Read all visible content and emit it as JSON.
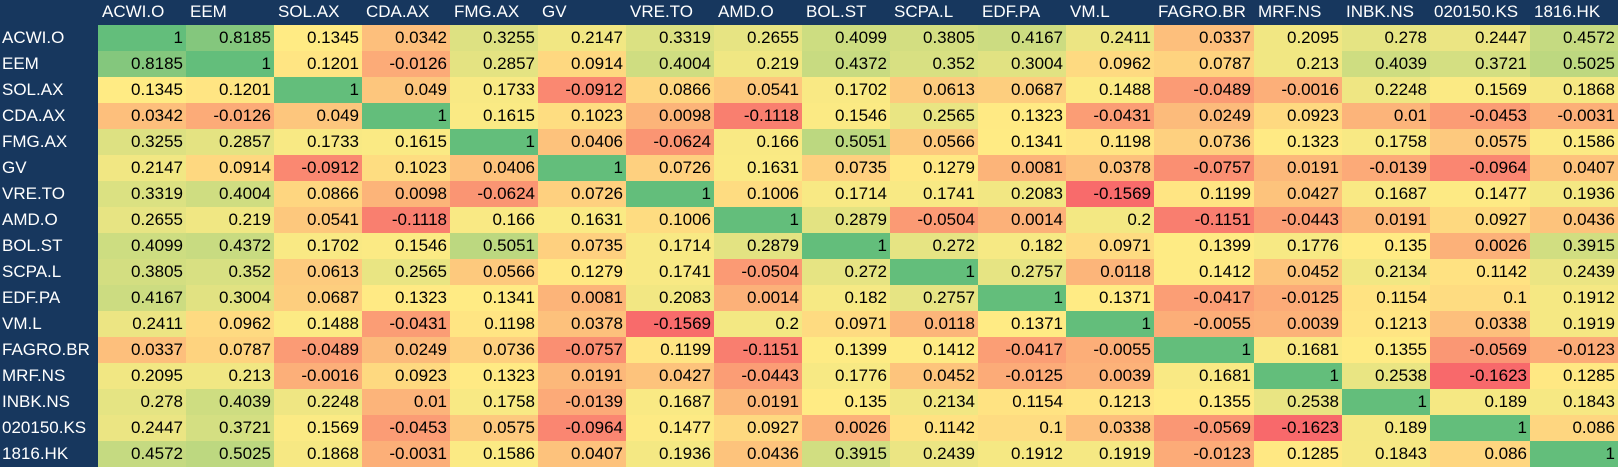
{
  "colors": {
    "header_bg": "#17375E",
    "header_text": "#FFFFFF",
    "scale_low": "#F8696B",
    "scale_mid": "#FFEB84",
    "scale_high": "#63BE7B"
  },
  "chart_data": {
    "type": "heatmap",
    "title": "",
    "xlabel": "",
    "ylabel": "",
    "legend": "none (3-color scale: red = low, yellow = median, green = high)",
    "x": [
      "ACWI.O",
      "EEM",
      "SOL.AX",
      "CDA.AX",
      "FMG.AX",
      "GV",
      "VRE.TO",
      "AMD.O",
      "BOL.ST",
      "SCPA.L",
      "EDF.PA",
      "VM.L",
      "FAGRO.BR",
      "MRF.NS",
      "INBK.NS",
      "020150.KS",
      "1816.HK"
    ],
    "y": [
      "ACWI.O",
      "EEM",
      "SOL.AX",
      "CDA.AX",
      "FMG.AX",
      "GV",
      "VRE.TO",
      "AMD.O",
      "BOL.ST",
      "SCPA.L",
      "EDF.PA",
      "VM.L",
      "FAGRO.BR",
      "MRF.NS",
      "INBK.NS",
      "020150.KS",
      "1816.HK"
    ],
    "values": [
      [
        1,
        0.8185,
        0.1345,
        0.0342,
        0.3255,
        0.2147,
        0.3319,
        0.2655,
        0.4099,
        0.3805,
        0.4167,
        0.2411,
        0.0337,
        0.2095,
        0.278,
        0.2447,
        0.4572
      ],
      [
        0.8185,
        1,
        0.1201,
        -0.0126,
        0.2857,
        0.0914,
        0.4004,
        0.219,
        0.4372,
        0.352,
        0.3004,
        0.0962,
        0.0787,
        0.213,
        0.4039,
        0.3721,
        0.5025
      ],
      [
        0.1345,
        0.1201,
        1,
        0.049,
        0.1733,
        -0.0912,
        0.0866,
        0.0541,
        0.1702,
        0.0613,
        0.0687,
        0.1488,
        -0.0489,
        -0.0016,
        0.2248,
        0.1569,
        0.1868
      ],
      [
        0.0342,
        -0.0126,
        0.049,
        1,
        0.1615,
        0.1023,
        0.0098,
        -0.1118,
        0.1546,
        0.2565,
        0.1323,
        -0.0431,
        0.0249,
        0.0923,
        0.01,
        -0.0453,
        -0.0031
      ],
      [
        0.3255,
        0.2857,
        0.1733,
        0.1615,
        1,
        0.0406,
        -0.0624,
        0.166,
        0.5051,
        0.0566,
        0.1341,
        0.1198,
        0.0736,
        0.1323,
        0.1758,
        0.0575,
        0.1586
      ],
      [
        0.2147,
        0.0914,
        -0.0912,
        0.1023,
        0.0406,
        1,
        0.0726,
        0.1631,
        0.0735,
        0.1279,
        0.0081,
        0.0378,
        -0.0757,
        0.0191,
        -0.0139,
        -0.0964,
        0.0407
      ],
      [
        0.3319,
        0.4004,
        0.0866,
        0.0098,
        -0.0624,
        0.0726,
        1,
        0.1006,
        0.1714,
        0.1741,
        0.2083,
        -0.1569,
        0.1199,
        0.0427,
        0.1687,
        0.1477,
        0.1936
      ],
      [
        0.2655,
        0.219,
        0.0541,
        -0.1118,
        0.166,
        0.1631,
        0.1006,
        1,
        0.2879,
        -0.0504,
        0.0014,
        0.2,
        -0.1151,
        -0.0443,
        0.0191,
        0.0927,
        0.0436
      ],
      [
        0.4099,
        0.4372,
        0.1702,
        0.1546,
        0.5051,
        0.0735,
        0.1714,
        0.2879,
        1,
        0.272,
        0.182,
        0.0971,
        0.1399,
        0.1776,
        0.135,
        0.0026,
        0.3915
      ],
      [
        0.3805,
        0.352,
        0.0613,
        0.2565,
        0.0566,
        0.1279,
        0.1741,
        -0.0504,
        0.272,
        1,
        0.2757,
        0.0118,
        0.1412,
        0.0452,
        0.2134,
        0.1142,
        0.2439
      ],
      [
        0.4167,
        0.3004,
        0.0687,
        0.1323,
        0.1341,
        0.0081,
        0.2083,
        0.0014,
        0.182,
        0.2757,
        1,
        0.1371,
        -0.0417,
        -0.0125,
        0.1154,
        0.1,
        0.1912
      ],
      [
        0.2411,
        0.0962,
        0.1488,
        -0.0431,
        0.1198,
        0.0378,
        -0.1569,
        0.2,
        0.0971,
        0.0118,
        0.1371,
        1,
        -0.0055,
        0.0039,
        0.1213,
        0.0338,
        0.1919
      ],
      [
        0.0337,
        0.0787,
        -0.0489,
        0.0249,
        0.0736,
        -0.0757,
        0.1199,
        -0.1151,
        0.1399,
        0.1412,
        -0.0417,
        -0.0055,
        1,
        0.1681,
        0.1355,
        -0.0569,
        -0.0123
      ],
      [
        0.2095,
        0.213,
        -0.0016,
        0.0923,
        0.1323,
        0.0191,
        0.0427,
        -0.0443,
        0.1776,
        0.0452,
        -0.0125,
        0.0039,
        0.1681,
        1,
        0.2538,
        -0.1623,
        0.1285
      ],
      [
        0.278,
        0.4039,
        0.2248,
        0.01,
        0.1758,
        -0.0139,
        0.1687,
        0.0191,
        0.135,
        0.2134,
        0.1154,
        0.1213,
        0.1355,
        0.2538,
        1,
        0.189,
        0.1843
      ],
      [
        0.2447,
        0.3721,
        0.1569,
        -0.0453,
        0.0575,
        -0.0964,
        0.1477,
        0.0927,
        0.0026,
        0.1142,
        0.1,
        0.0338,
        -0.0569,
        -0.1623,
        0.189,
        1,
        0.086
      ],
      [
        0.4572,
        0.5025,
        0.1868,
        -0.0031,
        0.1586,
        0.0407,
        0.1936,
        0.0436,
        0.3915,
        0.2439,
        0.1912,
        0.1919,
        -0.0123,
        0.1285,
        0.1843,
        0.086,
        1
      ]
    ],
    "value_range": [
      -0.1623,
      1
    ],
    "grid": false
  }
}
